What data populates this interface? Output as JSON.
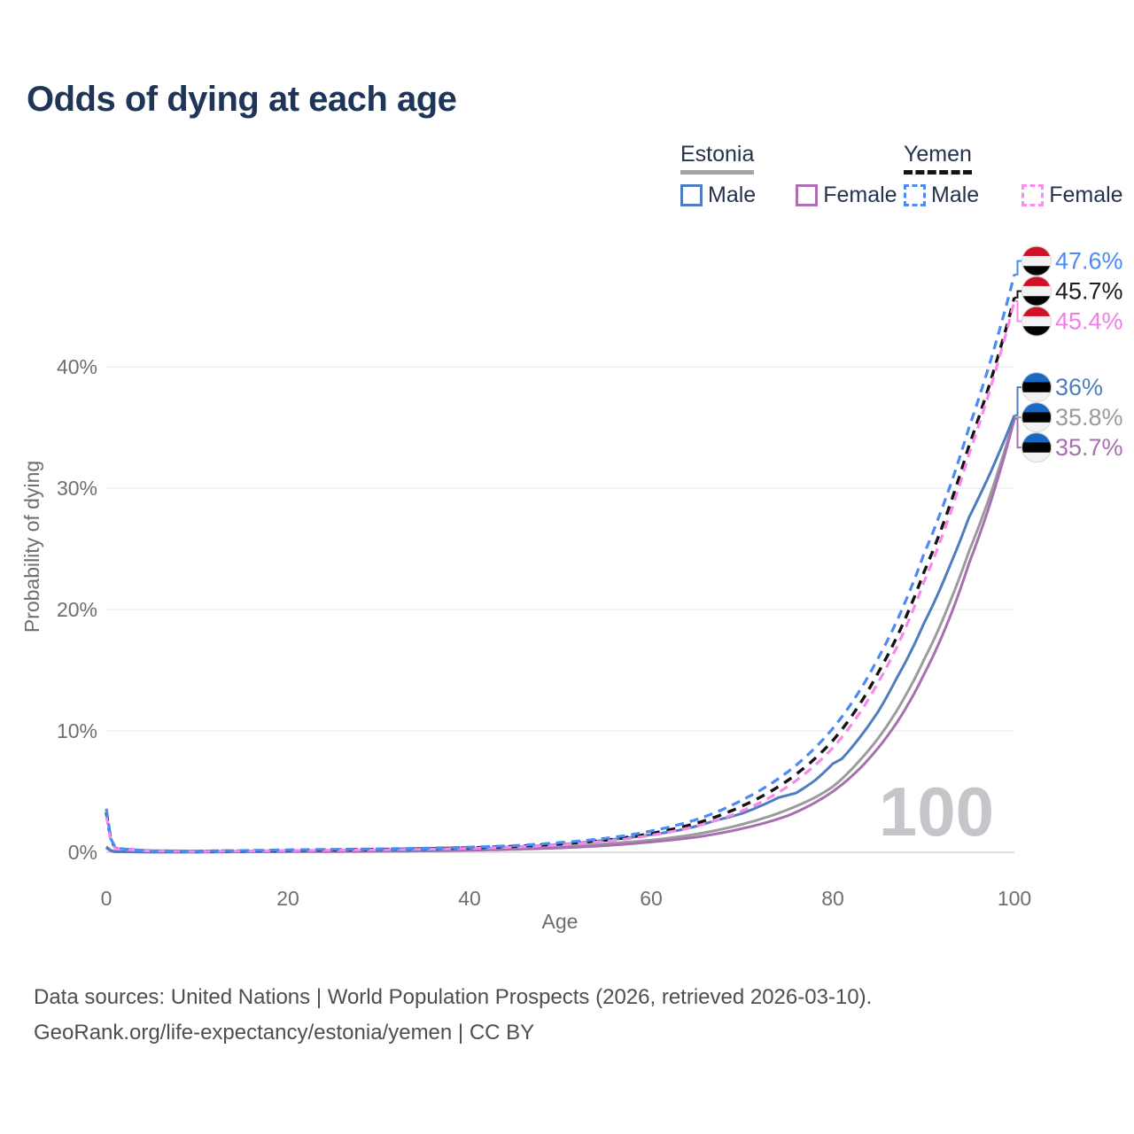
{
  "title": "Odds of dying at each age",
  "legend": {
    "groups": [
      {
        "name": "Estonia",
        "line_style": "solid",
        "underline_color": "#a3a3a3",
        "items": [
          {
            "label": "Male",
            "color": "#4d7dbe"
          },
          {
            "label": "Female",
            "color": "#b06fb4"
          }
        ]
      },
      {
        "name": "Yemen",
        "line_style": "dashed",
        "underline_color": "#141414",
        "items": [
          {
            "label": "Male",
            "color": "#4b8bf4"
          },
          {
            "label": "Female",
            "color": "#fb8bf3"
          }
        ]
      }
    ]
  },
  "watermark": "100",
  "footer": {
    "line1": "Data sources: United Nations | World Population Prospects (2026, retrieved 2026-03-10).",
    "line2": "GeoRank.org/life-expectancy/estonia/yemen | CC BY"
  },
  "flags": {
    "Estonia": [
      "#1868c4",
      "#000000",
      "#f2f2f2"
    ],
    "Yemen": [
      "#ce1126",
      "#f2f2f2",
      "#000000"
    ]
  },
  "chart_data": {
    "type": "line",
    "title": "Odds of dying at each age",
    "xlabel": "Age",
    "ylabel": "Probability of dying",
    "xlim": [
      0,
      100
    ],
    "ylim": [
      0,
      48
    ],
    "x_ticks": [
      0,
      20,
      40,
      60,
      80,
      100
    ],
    "y_ticks": [
      0,
      10,
      20,
      30,
      40
    ],
    "y_tick_suffix": "%",
    "grid": "horizontal",
    "legend_position": "top-right",
    "series": [
      {
        "id": "estonia-all",
        "name": "Estonia (both sexes)",
        "country": "Estonia",
        "color": "#9b9b9b",
        "dashed": false,
        "width": 3,
        "end_value": 35.8,
        "end_label": "35.8%",
        "label_color": "#9b9b9b",
        "points": [
          [
            0,
            0.4
          ],
          [
            1,
            0.045
          ],
          [
            5,
            0.025
          ],
          [
            10,
            0.025
          ],
          [
            15,
            0.045
          ],
          [
            20,
            0.07
          ],
          [
            25,
            0.09
          ],
          [
            30,
            0.11
          ],
          [
            35,
            0.15
          ],
          [
            40,
            0.22
          ],
          [
            45,
            0.32
          ],
          [
            50,
            0.47
          ],
          [
            55,
            0.7
          ],
          [
            60,
            1.0
          ],
          [
            65,
            1.5
          ],
          [
            70,
            2.3
          ],
          [
            75,
            3.5
          ],
          [
            78,
            4.5
          ],
          [
            80,
            5.4
          ],
          [
            83,
            7.6
          ],
          [
            85,
            9.4
          ],
          [
            88,
            12.9
          ],
          [
            90,
            15.8
          ],
          [
            93,
            20.8
          ],
          [
            95,
            24.8
          ],
          [
            100,
            35.8
          ]
        ]
      },
      {
        "id": "estonia-female",
        "name": "Estonia Female",
        "country": "Estonia",
        "color": "#a76fb0",
        "dashed": false,
        "width": 3,
        "end_value": 35.7,
        "end_label": "35.7%",
        "label_color": "#a76fb0",
        "points": [
          [
            0,
            0.35
          ],
          [
            1,
            0.04
          ],
          [
            5,
            0.02
          ],
          [
            10,
            0.02
          ],
          [
            15,
            0.03
          ],
          [
            20,
            0.05
          ],
          [
            25,
            0.06
          ],
          [
            30,
            0.08
          ],
          [
            35,
            0.11
          ],
          [
            40,
            0.16
          ],
          [
            45,
            0.24
          ],
          [
            50,
            0.36
          ],
          [
            55,
            0.55
          ],
          [
            60,
            0.85
          ],
          [
            65,
            1.25
          ],
          [
            70,
            1.95
          ],
          [
            75,
            3.0
          ],
          [
            80,
            5.0
          ],
          [
            85,
            8.6
          ],
          [
            90,
            14.6
          ],
          [
            95,
            23.8
          ],
          [
            100,
            35.7
          ]
        ]
      },
      {
        "id": "estonia-male",
        "name": "Estonia Male",
        "country": "Estonia",
        "color": "#4d7dbe",
        "dashed": false,
        "width": 3,
        "end_value": 36.0,
        "end_label": "36%",
        "label_color": "#4d7dbe",
        "points": [
          [
            0,
            0.45
          ],
          [
            1,
            0.05
          ],
          [
            5,
            0.03
          ],
          [
            10,
            0.03
          ],
          [
            15,
            0.06
          ],
          [
            20,
            0.1
          ],
          [
            25,
            0.12
          ],
          [
            30,
            0.15
          ],
          [
            35,
            0.2
          ],
          [
            40,
            0.3
          ],
          [
            45,
            0.45
          ],
          [
            50,
            0.65
          ],
          [
            55,
            1.0
          ],
          [
            60,
            1.45
          ],
          [
            63,
            1.8
          ],
          [
            65,
            2.15
          ],
          [
            67,
            2.6
          ],
          [
            70,
            3.2
          ],
          [
            72,
            3.8
          ],
          [
            74,
            4.5
          ],
          [
            76,
            4.9
          ],
          [
            78,
            5.9
          ],
          [
            80,
            7.3
          ],
          [
            81,
            7.7
          ],
          [
            83,
            9.5
          ],
          [
            85,
            11.6
          ],
          [
            87,
            14.3
          ],
          [
            90,
            18.8
          ],
          [
            93,
            23.8
          ],
          [
            95,
            27.6
          ],
          [
            100,
            36.0
          ]
        ]
      },
      {
        "id": "yemen-all",
        "name": "Yemen (both sexes)",
        "country": "Yemen",
        "color": "#141414",
        "dashed": true,
        "dash": "10 8",
        "width": 3.4,
        "end_value": 45.7,
        "end_label": "45.7%",
        "label_color": "#1c1c1c",
        "points": [
          [
            0,
            3.3
          ],
          [
            1,
            0.32
          ],
          [
            5,
            0.11
          ],
          [
            10,
            0.09
          ],
          [
            15,
            0.12
          ],
          [
            20,
            0.17
          ],
          [
            25,
            0.2
          ],
          [
            30,
            0.24
          ],
          [
            35,
            0.29
          ],
          [
            40,
            0.37
          ],
          [
            45,
            0.49
          ],
          [
            50,
            0.7
          ],
          [
            55,
            1.0
          ],
          [
            60,
            1.55
          ],
          [
            65,
            2.4
          ],
          [
            70,
            3.8
          ],
          [
            75,
            5.9
          ],
          [
            80,
            9.2
          ],
          [
            85,
            14.8
          ],
          [
            90,
            23.0
          ],
          [
            95,
            33.5
          ],
          [
            100,
            45.7
          ]
        ]
      },
      {
        "id": "yemen-female",
        "name": "Yemen Female",
        "country": "Yemen",
        "color": "#f788ee",
        "dashed": true,
        "dash": "10 7",
        "width": 3.2,
        "end_value": 45.4,
        "end_label": "45.4%",
        "label_color": "#f47bea",
        "points": [
          [
            0,
            3.0
          ],
          [
            1,
            0.3
          ],
          [
            5,
            0.1
          ],
          [
            10,
            0.08
          ],
          [
            15,
            0.1
          ],
          [
            20,
            0.14
          ],
          [
            25,
            0.17
          ],
          [
            30,
            0.2
          ],
          [
            35,
            0.25
          ],
          [
            40,
            0.32
          ],
          [
            45,
            0.43
          ],
          [
            50,
            0.62
          ],
          [
            55,
            0.9
          ],
          [
            60,
            1.4
          ],
          [
            65,
            2.15
          ],
          [
            70,
            3.4
          ],
          [
            75,
            5.4
          ],
          [
            80,
            8.6
          ],
          [
            85,
            14.0
          ],
          [
            90,
            22.2
          ],
          [
            95,
            32.8
          ],
          [
            100,
            45.4
          ]
        ]
      },
      {
        "id": "yemen-male",
        "name": "Yemen Male",
        "country": "Yemen",
        "color": "#4b8bf4",
        "dashed": true,
        "dash": "10 7",
        "width": 3.2,
        "end_value": 47.6,
        "end_label": "47.6%",
        "label_color": "#4b8bf4",
        "points": [
          [
            0,
            3.6
          ],
          [
            1,
            0.35
          ],
          [
            5,
            0.12
          ],
          [
            10,
            0.1
          ],
          [
            15,
            0.14
          ],
          [
            20,
            0.2
          ],
          [
            25,
            0.24
          ],
          [
            30,
            0.28
          ],
          [
            35,
            0.33
          ],
          [
            40,
            0.42
          ],
          [
            45,
            0.55
          ],
          [
            50,
            0.8
          ],
          [
            55,
            1.15
          ],
          [
            60,
            1.75
          ],
          [
            65,
            2.7
          ],
          [
            70,
            4.3
          ],
          [
            75,
            6.6
          ],
          [
            80,
            10.2
          ],
          [
            85,
            16.0
          ],
          [
            90,
            24.5
          ],
          [
            95,
            35.0
          ],
          [
            100,
            47.6
          ]
        ]
      }
    ]
  }
}
